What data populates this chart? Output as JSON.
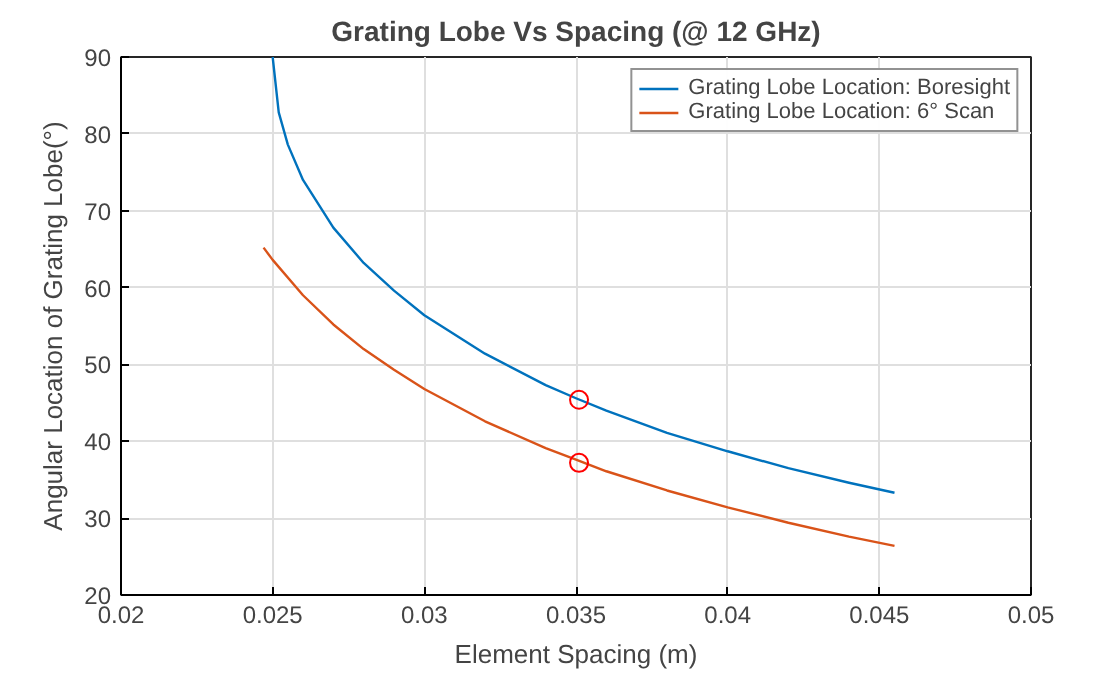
{
  "chart_data": {
    "type": "line",
    "title": "Grating Lobe Vs Spacing (@ 12 GHz)",
    "xlabel": "Element Spacing (m)",
    "ylabel": "Angular Location of Grating Lobe(°)",
    "xlim": [
      0.02,
      0.05
    ],
    "xticks": [
      0.02,
      0.025,
      0.03,
      0.035,
      0.04,
      0.045,
      0.05
    ],
    "ylim": [
      20,
      90
    ],
    "yticks": [
      20,
      30,
      40,
      50,
      60,
      70,
      80,
      90
    ],
    "grid": true,
    "legend": "top right",
    "marker": "none",
    "line_style": "solid",
    "series": [
      {
        "name": "Grating Lobe Location: Boresight",
        "color": "#0072bd",
        "x": [
          0.025,
          0.0252,
          0.0255,
          0.026,
          0.027,
          0.028,
          0.029,
          0.03,
          0.032,
          0.034,
          0.035,
          0.036,
          0.038,
          0.04,
          0.042,
          0.044,
          0.0455
        ],
        "values": [
          90,
          82.8,
          78.6,
          74.0,
          67.8,
          63.2,
          59.6,
          56.4,
          51.4,
          47.3,
          45.6,
          44.0,
          41.1,
          38.7,
          36.5,
          34.6,
          33.3
        ]
      },
      {
        "name": "Grating Lobe Location: 6° Scan",
        "color": "#d95319",
        "x": [
          0.0247,
          0.025,
          0.026,
          0.027,
          0.028,
          0.029,
          0.03,
          0.032,
          0.034,
          0.035,
          0.036,
          0.038,
          0.04,
          0.042,
          0.044,
          0.0455
        ],
        "values": [
          65.2,
          63.6,
          59.0,
          55.2,
          52.0,
          49.3,
          46.8,
          42.6,
          39.1,
          37.6,
          36.1,
          33.6,
          31.4,
          29.4,
          27.6,
          26.4
        ]
      },
      {
        "type": "scatter",
        "marker": "circle",
        "color": "#ff0000",
        "x": [
          0.0351,
          0.0351
        ],
        "values": [
          45.4,
          37.2
        ]
      }
    ]
  }
}
